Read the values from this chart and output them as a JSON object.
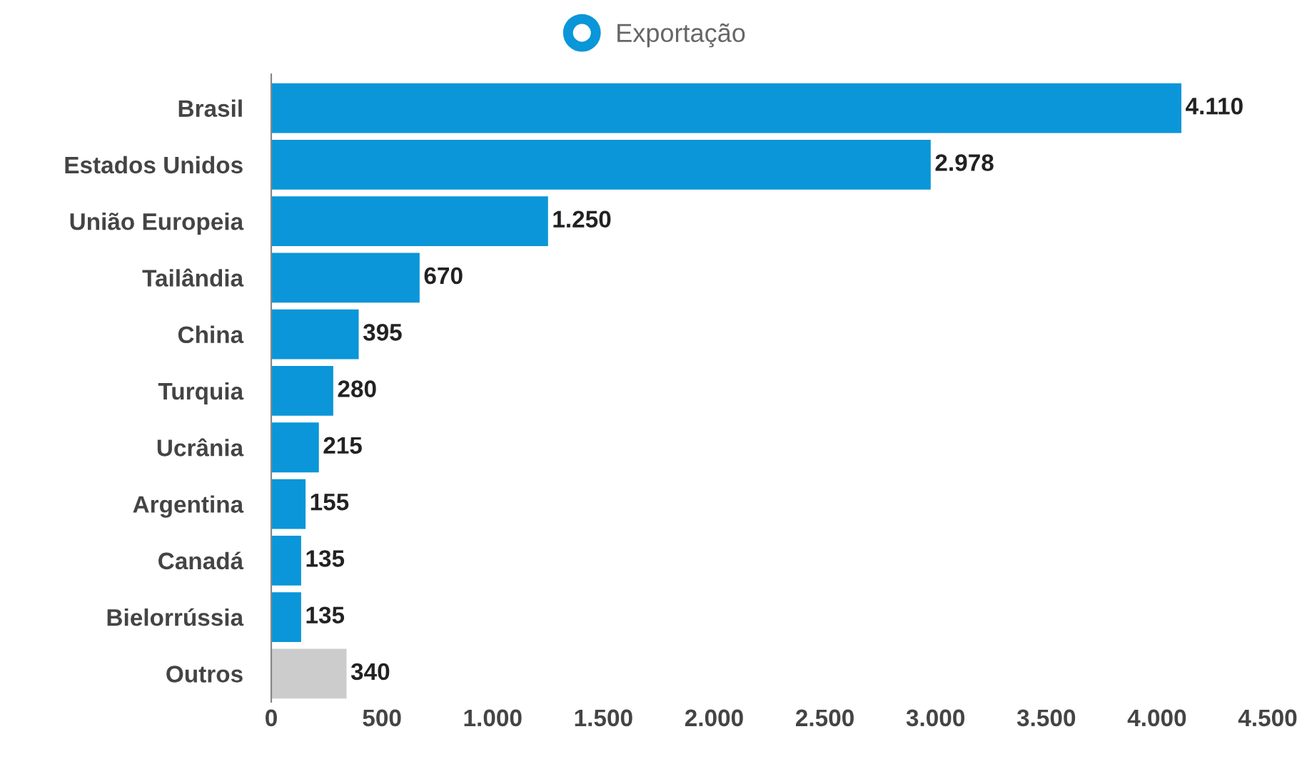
{
  "chart_data": {
    "type": "bar",
    "orientation": "horizontal",
    "categories": [
      "Brasil",
      "Estados Unidos",
      "União Europeia",
      "Tailândia",
      "China",
      "Turquia",
      "Ucrânia",
      "Argentina",
      "Canadá",
      "Bielorrússia",
      "Outros"
    ],
    "series": [
      {
        "name": "Exportação",
        "color": "#0a96d8",
        "colors": [
          "#0a96d8",
          "#0a96d8",
          "#0a96d8",
          "#0a96d8",
          "#0a96d8",
          "#0a96d8",
          "#0a96d8",
          "#0a96d8",
          "#0a96d8",
          "#0a96d8",
          "#cccccc"
        ],
        "values": [
          4110,
          2978,
          1250,
          670,
          395,
          280,
          215,
          155,
          135,
          135,
          340
        ],
        "value_labels": [
          "4.110",
          "2.978",
          "1.250",
          "670",
          "395",
          "280",
          "215",
          "155",
          "135",
          "135",
          "340"
        ]
      }
    ],
    "xlim": [
      0,
      4500
    ],
    "xticks": [
      0,
      500,
      {
        "value": 1000,
        "label": "1.000"
      },
      {
        "value": 1500,
        "label": "1.500"
      },
      {
        "value": 2000,
        "label": "2.000"
      },
      {
        "value": 2500,
        "label": "2.500"
      },
      {
        "value": 3000,
        "label": "3.000"
      },
      {
        "value": 3500,
        "label": "3.500"
      },
      {
        "value": 4000,
        "label": "4.000"
      },
      {
        "value": 4500,
        "label": "4.500"
      }
    ],
    "legend": "top",
    "grid": false
  }
}
